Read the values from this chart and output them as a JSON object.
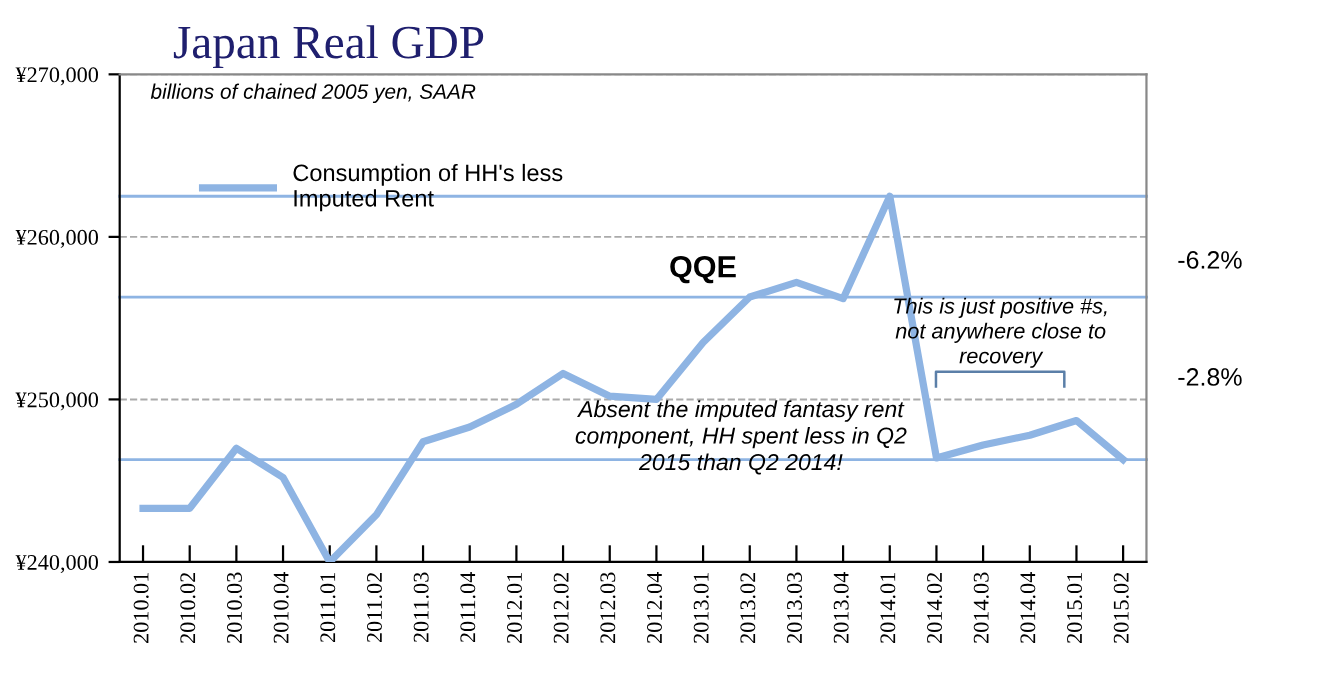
{
  "chart_data": {
    "type": "line",
    "title": "Japan Real GDP",
    "subtitle": "billions of chained 2005 yen, SAAR",
    "categories": [
      "2010.01",
      "2010.02",
      "2010.03",
      "2010.04",
      "2011.01",
      "2011.02",
      "2011.03",
      "2011.04",
      "2012.01",
      "2012.02",
      "2012.03",
      "2012.04",
      "2013.01",
      "2013.02",
      "2013.03",
      "2013.04",
      "2014.01",
      "2014.02",
      "2014.03",
      "2014.04",
      "2015.01",
      "2015.02"
    ],
    "series": [
      {
        "name": "Consumption of HH's less\nImputed Rent",
        "color": "#8eb4e3",
        "values": [
          243300,
          243300,
          247000,
          245200,
          240000,
          242900,
          247400,
          248300,
          249700,
          251600,
          250200,
          250000,
          253500,
          256300,
          257200,
          256200,
          262500,
          246400,
          247200,
          247800,
          248700,
          246300
        ]
      }
    ],
    "ylim": [
      240000,
      270000
    ],
    "yticks": [
      {
        "value": 240000,
        "label": "¥240,000"
      },
      {
        "value": 250000,
        "label": "¥250,000"
      },
      {
        "value": 260000,
        "label": "¥260,000"
      },
      {
        "value": 270000,
        "label": "¥270,000"
      }
    ],
    "grid": "y",
    "legend": "top left",
    "marker": "none",
    "line_style": "solid",
    "ref_lines": [
      {
        "axis": "y",
        "value": 262500,
        "color": "#8eb4e3"
      },
      {
        "axis": "y",
        "value": 256300,
        "color": "#8eb4e3"
      },
      {
        "axis": "y",
        "value": 246300,
        "color": "#8eb4e3"
      }
    ],
    "annotations": [
      "-6.2%",
      "-2.8%",
      "QQE",
      "This is just positive #s,\nnot anywhere close to\nrecovery",
      "Absent the imputed fantasy rent\ncomponent, HH spent less in Q2\n2015 than Q2 2014!"
    ]
  }
}
